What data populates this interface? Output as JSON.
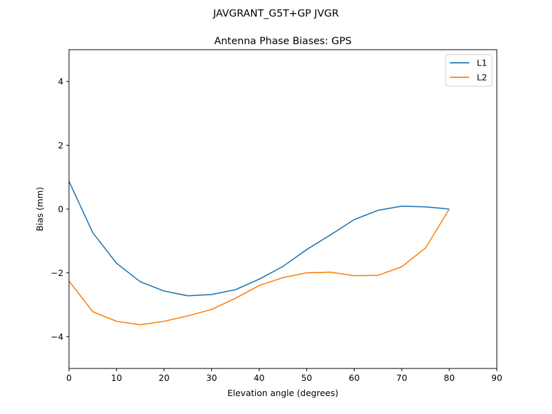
{
  "chart_data": {
    "type": "line",
    "suptitle": "JAVGRANT_G5T+GP JVGR",
    "title": "Antenna Phase Biases: GPS",
    "xlabel": "Elevation angle (degrees)",
    "ylabel": "Bias (mm)",
    "xlim": [
      0,
      90
    ],
    "ylim": [
      -5,
      5
    ],
    "xticks": [
      0,
      10,
      20,
      30,
      40,
      50,
      60,
      70,
      80,
      90
    ],
    "yticks": [
      -4,
      -2,
      0,
      2,
      4
    ],
    "ytick_labels": [
      "−4",
      "−2",
      "0",
      "2",
      "4"
    ],
    "grid": false,
    "legend_position": "top-right",
    "x": [
      0,
      5,
      10,
      15,
      20,
      25,
      30,
      35,
      40,
      45,
      50,
      55,
      60,
      65,
      70,
      75,
      80
    ],
    "series": [
      {
        "name": "L1",
        "color": "#1f77b4",
        "values": [
          0.87,
          -0.74,
          -1.7,
          -2.28,
          -2.57,
          -2.72,
          -2.68,
          -2.53,
          -2.2,
          -1.8,
          -1.27,
          -0.81,
          -0.33,
          -0.04,
          0.09,
          0.07,
          0.0
        ]
      },
      {
        "name": "L2",
        "color": "#ff7f0e",
        "values": [
          -2.26,
          -3.22,
          -3.52,
          -3.63,
          -3.52,
          -3.35,
          -3.15,
          -2.8,
          -2.4,
          -2.15,
          -2.0,
          -1.98,
          -2.09,
          -2.08,
          -1.81,
          -1.22,
          0.0
        ]
      }
    ]
  }
}
